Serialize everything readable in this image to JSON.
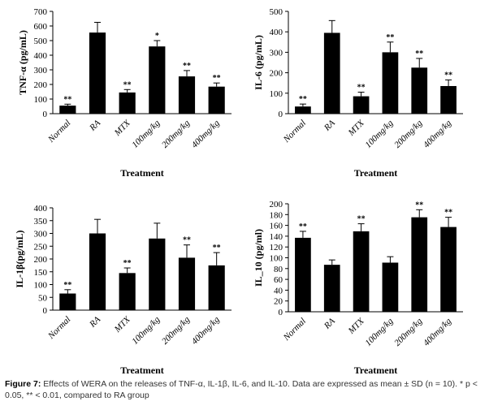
{
  "chart_data": [
    {
      "type": "bar",
      "ylabel": "TNF-α (pg/mL)",
      "xlabel": "Treatment",
      "ylim": [
        0,
        700
      ],
      "ytick_step": 100,
      "yticks": [
        "0",
        "100",
        "200",
        "300",
        "400",
        "500",
        "600",
        "700"
      ],
      "categories": [
        "Normal",
        "RA",
        "MTX",
        "100mg/kg",
        "200mg/kg",
        "400mg/kg"
      ],
      "values": [
        55,
        555,
        145,
        460,
        255,
        185
      ],
      "errors": [
        10,
        70,
        20,
        40,
        40,
        25
      ],
      "significance": [
        "**",
        "",
        "**",
        "*",
        "**",
        "**"
      ]
    },
    {
      "type": "bar",
      "ylabel": "IL-6 (pg/mL)",
      "xlabel": "Treatment",
      "ylim": [
        0,
        500
      ],
      "ytick_step": 100,
      "yticks": [
        "0",
        "100",
        "200",
        "300",
        "400",
        "500"
      ],
      "categories": [
        "Normal",
        "RA",
        "MTX",
        "100mg/kg",
        "200mg/kg",
        "400mg/kg"
      ],
      "values": [
        35,
        395,
        85,
        300,
        225,
        135
      ],
      "errors": [
        12,
        60,
        20,
        50,
        45,
        30
      ],
      "significance": [
        "**",
        "",
        "**",
        "**",
        "**",
        "**"
      ]
    },
    {
      "type": "bar",
      "ylabel": "IL-1β(pg/mL)",
      "xlabel": "Treatment",
      "ylim": [
        0,
        400
      ],
      "ytick_step": 50,
      "yticks": [
        "0",
        "50",
        "100",
        "150",
        "200",
        "250",
        "300",
        "350",
        "400"
      ],
      "categories": [
        "Normal",
        "RA",
        "MTX",
        "100mg/kg",
        "200mg/kg",
        "400mg/kg"
      ],
      "values": [
        65,
        300,
        145,
        280,
        205,
        175
      ],
      "errors": [
        15,
        55,
        20,
        60,
        50,
        50
      ],
      "significance": [
        "**",
        "",
        "**",
        "",
        "**",
        "**"
      ]
    },
    {
      "type": "bar",
      "ylabel": "IL_10 (pg/ml)",
      "xlabel": "Treatment",
      "ylim": [
        0,
        200
      ],
      "ytick_step": 20,
      "yticks": [
        "0",
        "20",
        "40",
        "60",
        "80",
        "100",
        "120",
        "140",
        "160",
        "180",
        "200"
      ],
      "categories": [
        "Normal",
        "RA",
        "MTX",
        "100mg/kg",
        "200mg/kg",
        "400mg/kg"
      ],
      "values": [
        137,
        87,
        149,
        91,
        175,
        157
      ],
      "errors": [
        12,
        9,
        14,
        11,
        14,
        18
      ],
      "significance": [
        "**",
        "",
        "**",
        "",
        "**",
        "**"
      ]
    }
  ],
  "caption": {
    "label": "Figure 7:",
    "text": " Effects of WERA on the releases of TNF-α, IL-1β, IL-6, and IL-10. Data are expressed as mean ± SD (n = 10). * p < 0.05, ** < 0.01, compared to RA group"
  },
  "colors": {
    "bar": "#000000",
    "axis": "#000000",
    "caption_text": "#333333"
  }
}
